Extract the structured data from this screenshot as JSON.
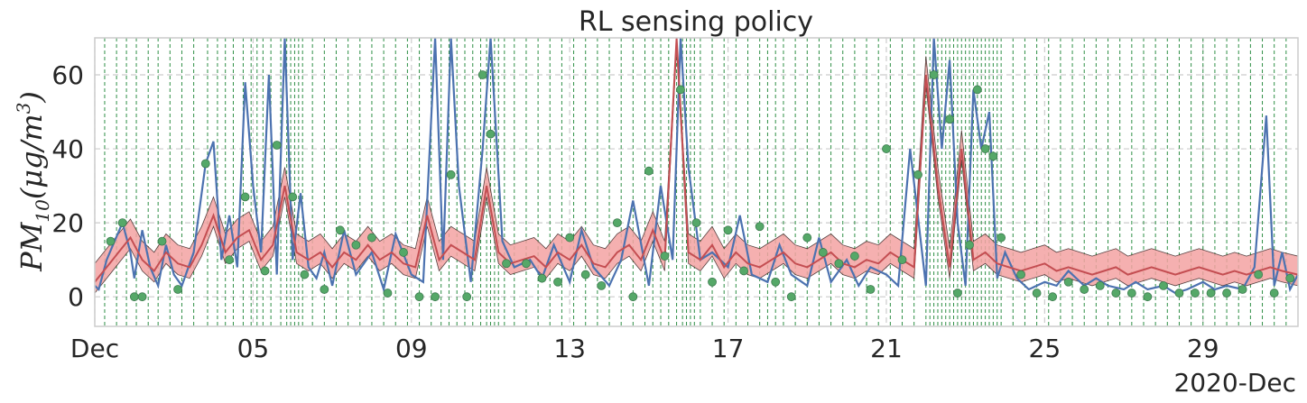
{
  "chart_data": {
    "type": "line",
    "title": "RL sensing policy",
    "ylabel_parts": {
      "main": "PM",
      "sub": "10",
      "open": "(μg/m",
      "sup": "3",
      "close": ")"
    },
    "ylim": [
      -8,
      70
    ],
    "yticks": [
      0,
      20,
      40,
      60
    ],
    "xlim": [
      0,
      30.4
    ],
    "xticks": [
      {
        "x": 0,
        "label": "Dec"
      },
      {
        "x": 4,
        "label": "05"
      },
      {
        "x": 8,
        "label": "09"
      },
      {
        "x": 12,
        "label": "13"
      },
      {
        "x": 16,
        "label": "17"
      },
      {
        "x": 20,
        "label": "21"
      },
      {
        "x": 24,
        "label": "25"
      },
      {
        "x": 28,
        "label": "29"
      }
    ],
    "x_offset_label": "2020-Dec",
    "grid": true,
    "colors": {
      "observed": "#4c72b0",
      "predicted": "#c44e52",
      "band": "#f4a3a3",
      "band_edge": "#3a2020",
      "sensing": "#2f8f46",
      "marker": "#55a868",
      "grid": "#cccccc"
    },
    "series": [
      {
        "key": "observed",
        "x": [
          0,
          0.1,
          0.3,
          0.5,
          0.7,
          0.9,
          1.0,
          1.2,
          1.4,
          1.6,
          1.8,
          2.0,
          2.2,
          2.5,
          2.8,
          3.0,
          3.2,
          3.4,
          3.6,
          3.8,
          4.0,
          4.2,
          4.4,
          4.6,
          4.8,
          5.0,
          5.2,
          5.4,
          5.6,
          5.8,
          6.0,
          6.3,
          6.6,
          7.0,
          7.3,
          7.6,
          8.0,
          8.3,
          8.6,
          8.8,
          9.0,
          9.2,
          9.5,
          9.8,
          10.0,
          10.3,
          10.6,
          11.0,
          11.3,
          11.6,
          12.0,
          12.3,
          12.6,
          13.0,
          13.3,
          13.6,
          14.0,
          14.3,
          14.6,
          14.8,
          15.0,
          15.3,
          15.6,
          16.0,
          16.3,
          16.6,
          17.0,
          17.3,
          17.6,
          18.0,
          18.3,
          18.6,
          19.0,
          19.3,
          19.6,
          20.0,
          20.3,
          20.6,
          21.0,
          21.2,
          21.4,
          21.6,
          21.8,
          22.0,
          22.2,
          22.4,
          22.6,
          22.8,
          23.0,
          23.3,
          23.6,
          24.0,
          24.3,
          24.6,
          25.0,
          25.3,
          25.6,
          26.0,
          26.3,
          26.6,
          27.0,
          27.3,
          27.6,
          28.0,
          28.3,
          28.6,
          29.0,
          29.3,
          29.6,
          29.8,
          30.0,
          30.2,
          30.4
        ],
        "y": [
          3,
          2,
          10,
          15,
          20,
          12,
          5,
          18,
          8,
          3,
          14,
          6,
          3,
          12,
          36,
          42,
          10,
          22,
          8,
          58,
          30,
          12,
          60,
          6,
          70,
          10,
          28,
          8,
          5,
          12,
          3,
          18,
          6,
          12,
          2,
          17,
          6,
          4,
          70,
          10,
          70,
          30,
          4,
          40,
          70,
          15,
          8,
          10,
          5,
          14,
          4,
          18,
          8,
          3,
          10,
          26,
          3,
          30,
          10,
          70,
          35,
          10,
          12,
          8,
          22,
          6,
          4,
          14,
          6,
          3,
          16,
          4,
          10,
          3,
          8,
          6,
          3,
          40,
          3,
          70,
          40,
          64,
          20,
          3,
          56,
          40,
          50,
          5,
          12,
          5,
          2,
          4,
          3,
          7,
          3,
          5,
          3,
          2,
          4,
          2,
          3,
          1,
          2,
          4,
          2,
          3,
          2,
          8,
          49,
          3,
          12,
          2,
          6
        ]
      },
      {
        "key": "predicted",
        "x": [
          0,
          0.3,
          0.6,
          0.9,
          1.2,
          1.5,
          1.8,
          2.1,
          2.4,
          2.7,
          3.0,
          3.3,
          3.6,
          3.9,
          4.2,
          4.5,
          4.8,
          5.1,
          5.4,
          5.7,
          6.0,
          6.3,
          6.6,
          6.9,
          7.2,
          7.5,
          7.8,
          8.1,
          8.4,
          8.7,
          9.0,
          9.3,
          9.6,
          9.9,
          10.2,
          10.5,
          10.8,
          11.1,
          11.4,
          11.7,
          12.0,
          12.3,
          12.6,
          12.9,
          13.2,
          13.5,
          13.8,
          14.1,
          14.4,
          14.7,
          15.0,
          15.3,
          15.6,
          15.9,
          16.2,
          16.5,
          16.8,
          17.1,
          17.4,
          17.7,
          18.0,
          18.3,
          18.6,
          18.9,
          19.2,
          19.5,
          19.8,
          20.1,
          20.4,
          20.7,
          21.0,
          21.3,
          21.6,
          21.9,
          22.2,
          22.5,
          22.8,
          23.1,
          23.4,
          23.7,
          24.0,
          24.3,
          24.6,
          24.9,
          25.2,
          25.5,
          25.8,
          26.1,
          26.4,
          26.7,
          27.0,
          27.3,
          27.6,
          27.9,
          28.2,
          28.5,
          28.8,
          29.1,
          29.4,
          29.7,
          30.0,
          30.4
        ],
        "y": [
          4,
          8,
          12,
          16,
          10,
          7,
          12,
          9,
          8,
          14,
          22,
          12,
          16,
          18,
          10,
          14,
          30,
          12,
          10,
          12,
          8,
          12,
          10,
          14,
          10,
          12,
          9,
          8,
          22,
          10,
          14,
          12,
          10,
          30,
          12,
          9,
          10,
          11,
          8,
          12,
          10,
          14,
          9,
          8,
          12,
          14,
          10,
          18,
          10,
          70,
          12,
          10,
          14,
          8,
          12,
          9,
          8,
          10,
          12,
          9,
          8,
          10,
          12,
          9,
          8,
          10,
          9,
          12,
          10,
          8,
          60,
          30,
          8,
          40,
          10,
          12,
          9,
          8,
          7,
          8,
          9,
          7,
          8,
          7,
          6,
          7,
          8,
          6,
          7,
          8,
          7,
          6,
          7,
          8,
          7,
          6,
          7,
          6,
          7,
          8,
          7,
          6
        ],
        "lower_offset": 3,
        "upper_offset": 5
      }
    ],
    "sensing_times": [
      0.25,
      0.55,
      0.8,
      1.05,
      1.35,
      1.6,
      1.9,
      2.2,
      2.5,
      2.85,
      3.1,
      3.3,
      3.5,
      3.75,
      3.95,
      4.1,
      4.25,
      4.45,
      4.7,
      4.85,
      4.95,
      5.05,
      5.15,
      5.25,
      5.5,
      5.8,
      6.1,
      6.4,
      6.7,
      7.0,
      7.3,
      7.6,
      7.9,
      8.2,
      8.5,
      8.75,
      8.95,
      9.15,
      9.35,
      9.55,
      9.75,
      9.9,
      10.0,
      10.1,
      10.2,
      10.35,
      10.6,
      10.9,
      11.2,
      11.5,
      11.8,
      12.1,
      12.4,
      12.7,
      13.0,
      13.3,
      13.6,
      13.9,
      14.1,
      14.3,
      14.5,
      14.7,
      14.85,
      14.95,
      15.05,
      15.15,
      15.3,
      15.6,
      15.9,
      16.2,
      16.5,
      16.8,
      17.0,
      17.2,
      17.4,
      17.7,
      18.0,
      18.3,
      18.6,
      18.9,
      19.2,
      19.5,
      19.8,
      20.1,
      20.4,
      20.7,
      21.0,
      21.1,
      21.2,
      21.3,
      21.4,
      21.5,
      21.6,
      21.7,
      21.8,
      21.9,
      22.0,
      22.1,
      22.2,
      22.3,
      22.4,
      22.5,
      22.6,
      22.7,
      22.8,
      22.9,
      23.2,
      23.5,
      23.8,
      24.1,
      24.4,
      24.7,
      25.0,
      25.3,
      25.6,
      25.9,
      26.2,
      26.5,
      26.8,
      27.1,
      27.4,
      27.7,
      28.0,
      28.3,
      28.6,
      28.9,
      29.2,
      29.5,
      29.8,
      30.1
    ],
    "sensed_points": [
      {
        "x": 0.4,
        "y": 15
      },
      {
        "x": 0.7,
        "y": 20
      },
      {
        "x": 1.0,
        "y": 0
      },
      {
        "x": 1.2,
        "y": 0
      },
      {
        "x": 1.7,
        "y": 15
      },
      {
        "x": 2.1,
        "y": 2
      },
      {
        "x": 2.8,
        "y": 36
      },
      {
        "x": 3.4,
        "y": 10
      },
      {
        "x": 3.8,
        "y": 27
      },
      {
        "x": 4.3,
        "y": 7
      },
      {
        "x": 4.6,
        "y": 41
      },
      {
        "x": 5.0,
        "y": 27
      },
      {
        "x": 5.3,
        "y": 6
      },
      {
        "x": 5.8,
        "y": 2
      },
      {
        "x": 6.2,
        "y": 18
      },
      {
        "x": 6.6,
        "y": 14
      },
      {
        "x": 7.0,
        "y": 16
      },
      {
        "x": 7.4,
        "y": 1
      },
      {
        "x": 7.8,
        "y": 12
      },
      {
        "x": 8.2,
        "y": 0
      },
      {
        "x": 8.6,
        "y": 0
      },
      {
        "x": 9.0,
        "y": 33
      },
      {
        "x": 9.4,
        "y": 0
      },
      {
        "x": 9.8,
        "y": 60
      },
      {
        "x": 10.0,
        "y": 44
      },
      {
        "x": 10.4,
        "y": 9
      },
      {
        "x": 10.9,
        "y": 9
      },
      {
        "x": 11.3,
        "y": 5
      },
      {
        "x": 11.7,
        "y": 4
      },
      {
        "x": 12.0,
        "y": 16
      },
      {
        "x": 12.4,
        "y": 6
      },
      {
        "x": 12.8,
        "y": 3
      },
      {
        "x": 13.2,
        "y": 20
      },
      {
        "x": 13.6,
        "y": 0
      },
      {
        "x": 14.0,
        "y": 34
      },
      {
        "x": 14.4,
        "y": 11
      },
      {
        "x": 14.8,
        "y": 56
      },
      {
        "x": 15.2,
        "y": 20
      },
      {
        "x": 15.6,
        "y": 4
      },
      {
        "x": 16.0,
        "y": 18
      },
      {
        "x": 16.4,
        "y": 7
      },
      {
        "x": 16.8,
        "y": 19
      },
      {
        "x": 17.2,
        "y": 4
      },
      {
        "x": 17.6,
        "y": 0
      },
      {
        "x": 18.0,
        "y": 16
      },
      {
        "x": 18.4,
        "y": 12
      },
      {
        "x": 18.8,
        "y": 9
      },
      {
        "x": 19.2,
        "y": 11
      },
      {
        "x": 19.6,
        "y": 2
      },
      {
        "x": 20.0,
        "y": 40
      },
      {
        "x": 20.4,
        "y": 10
      },
      {
        "x": 20.8,
        "y": 33
      },
      {
        "x": 21.2,
        "y": 60
      },
      {
        "x": 21.6,
        "y": 48
      },
      {
        "x": 21.8,
        "y": 1
      },
      {
        "x": 22.1,
        "y": 14
      },
      {
        "x": 22.3,
        "y": 56
      },
      {
        "x": 22.5,
        "y": 40
      },
      {
        "x": 22.7,
        "y": 38
      },
      {
        "x": 22.9,
        "y": 16
      },
      {
        "x": 23.4,
        "y": 6
      },
      {
        "x": 23.8,
        "y": 1
      },
      {
        "x": 24.2,
        "y": 0
      },
      {
        "x": 24.6,
        "y": 4
      },
      {
        "x": 25.0,
        "y": 2
      },
      {
        "x": 25.4,
        "y": 3
      },
      {
        "x": 25.8,
        "y": 1
      },
      {
        "x": 26.2,
        "y": 1
      },
      {
        "x": 26.6,
        "y": 0
      },
      {
        "x": 27.0,
        "y": 3
      },
      {
        "x": 27.4,
        "y": 1
      },
      {
        "x": 27.8,
        "y": 1
      },
      {
        "x": 28.2,
        "y": 1
      },
      {
        "x": 28.6,
        "y": 1
      },
      {
        "x": 29.0,
        "y": 2
      },
      {
        "x": 29.4,
        "y": 6
      },
      {
        "x": 29.8,
        "y": 1
      },
      {
        "x": 30.2,
        "y": 5
      }
    ]
  }
}
